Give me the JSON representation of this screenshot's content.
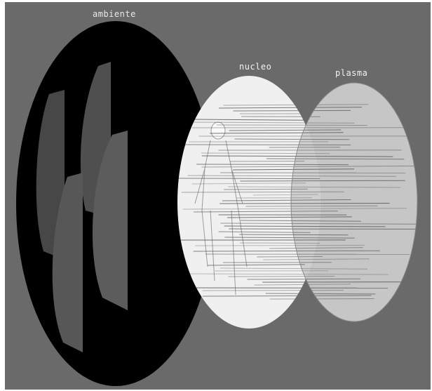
{
  "labels": {
    "left": "ambiente",
    "middle": "nucleo",
    "right": "plasma"
  },
  "colors": {
    "canvas_background": "#6a6a6a",
    "left_ellipse": "#000000",
    "middle_ellipse": "#f0f0f0",
    "right_ellipse": "#c6c6c6",
    "panel_dark": "#4a4a4a",
    "panel_mid": "#5e5e5e",
    "lines": "#555555"
  }
}
